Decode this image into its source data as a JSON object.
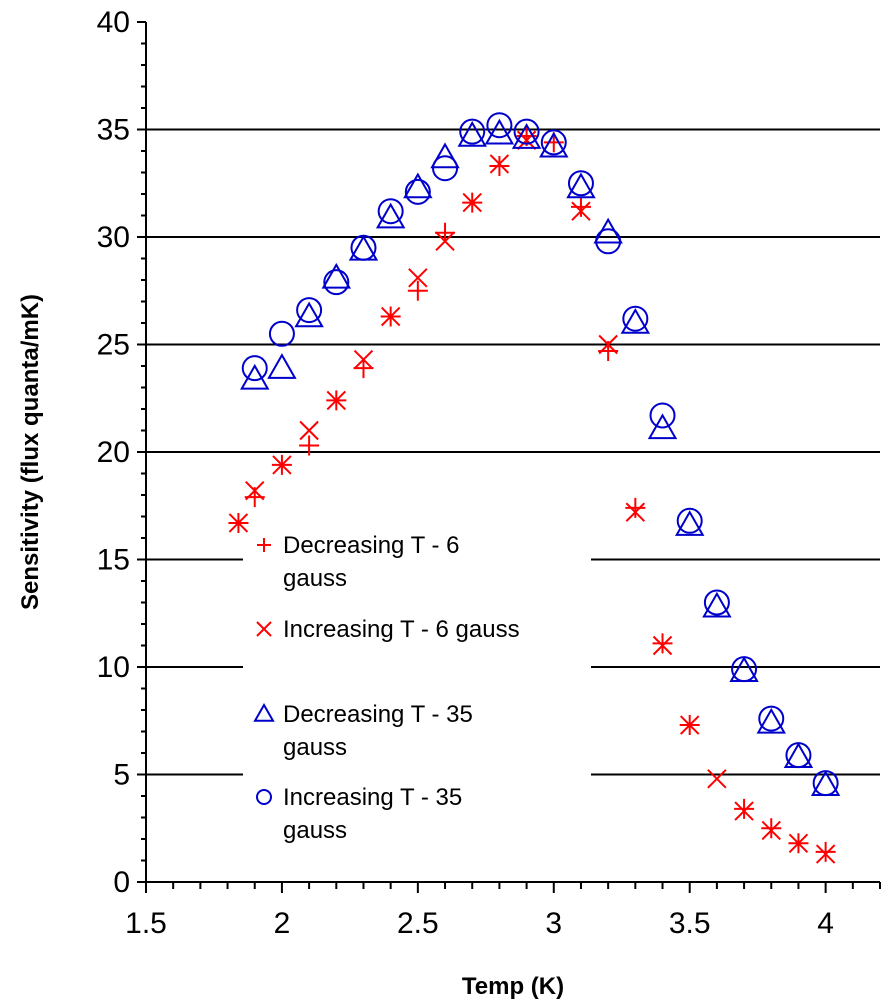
{
  "chart_data": {
    "type": "scatter",
    "xlabel": "Temp (K)",
    "ylabel": "Sensitivity (flux quanta/mK)",
    "xlim": [
      1.5,
      4.2
    ],
    "ylim": [
      0,
      40
    ],
    "x_ticks": [
      1.5,
      2,
      2.5,
      3,
      3.5,
      4
    ],
    "x_tick_labels": [
      "1.5",
      "2",
      "2.5",
      "3",
      "3.5",
      "4"
    ],
    "y_ticks": [
      0,
      5,
      10,
      15,
      20,
      25,
      30,
      35,
      40
    ],
    "y_tick_labels": [
      "0",
      "5",
      "10",
      "15",
      "20",
      "25",
      "30",
      "35",
      "40"
    ],
    "grid": "horizontal major lines",
    "legend_position": "center-left inside plot",
    "series": [
      {
        "name": "Decreasing T - 6 gauss",
        "legend_lines": [
          "Decreasing T - 6",
          "gauss"
        ],
        "marker": "plus",
        "color": "#ff0000",
        "points": [
          [
            1.84,
            16.7
          ],
          [
            1.9,
            17.9
          ],
          [
            2.0,
            19.4
          ],
          [
            2.1,
            20.3
          ],
          [
            2.2,
            22.4
          ],
          [
            2.3,
            23.9
          ],
          [
            2.4,
            26.3
          ],
          [
            2.5,
            27.5
          ],
          [
            2.6,
            30.2
          ],
          [
            2.7,
            31.6
          ],
          [
            2.8,
            33.3
          ],
          [
            2.9,
            34.7
          ],
          [
            3.0,
            34.4
          ],
          [
            3.1,
            31.4
          ],
          [
            3.2,
            24.7
          ],
          [
            3.3,
            17.4
          ],
          [
            3.4,
            11.1
          ],
          [
            3.5,
            7.3
          ],
          [
            3.7,
            3.4
          ],
          [
            3.8,
            2.5
          ],
          [
            3.9,
            1.8
          ],
          [
            4.0,
            1.4
          ]
        ]
      },
      {
        "name": "Increasing T -  6 gauss",
        "legend_lines": [
          "Increasing T -  6 gauss"
        ],
        "marker": "x",
        "color": "#ff0000",
        "points": [
          [
            1.84,
            16.7
          ],
          [
            1.9,
            18.2
          ],
          [
            2.0,
            19.4
          ],
          [
            2.1,
            21.0
          ],
          [
            2.2,
            22.4
          ],
          [
            2.3,
            24.3
          ],
          [
            2.4,
            26.3
          ],
          [
            2.5,
            28.1
          ],
          [
            2.6,
            29.8
          ],
          [
            2.7,
            31.6
          ],
          [
            2.8,
            33.4
          ],
          [
            2.9,
            34.5
          ],
          [
            3.1,
            31.2
          ],
          [
            3.2,
            25.0
          ],
          [
            3.3,
            17.2
          ],
          [
            3.4,
            11.0
          ],
          [
            3.5,
            7.3
          ],
          [
            3.6,
            4.8
          ],
          [
            3.7,
            3.3
          ],
          [
            3.8,
            2.4
          ],
          [
            3.9,
            1.8
          ],
          [
            4.0,
            1.3
          ]
        ]
      },
      {
        "name": "Decreasing T - 35 gauss",
        "legend_lines": [
          "Decreasing T - 35",
          "gauss"
        ],
        "marker": "triangle",
        "color": "#0000cc",
        "points": [
          [
            1.9,
            23.4
          ],
          [
            2.0,
            23.9
          ],
          [
            2.1,
            26.3
          ],
          [
            2.2,
            28.1
          ],
          [
            2.3,
            29.4
          ],
          [
            2.4,
            30.9
          ],
          [
            2.5,
            32.3
          ],
          [
            2.6,
            33.7
          ],
          [
            2.7,
            34.7
          ],
          [
            2.8,
            34.8
          ],
          [
            2.9,
            34.6
          ],
          [
            3.0,
            34.2
          ],
          [
            3.1,
            32.3
          ],
          [
            3.2,
            30.2
          ],
          [
            3.3,
            26.0
          ],
          [
            3.4,
            21.1
          ],
          [
            3.5,
            16.6
          ],
          [
            3.6,
            12.8
          ],
          [
            3.7,
            9.8
          ],
          [
            3.8,
            7.4
          ],
          [
            3.9,
            5.8
          ],
          [
            4.0,
            4.5
          ]
        ]
      },
      {
        "name": "Increasing T - 35 gauss",
        "legend_lines": [
          "Increasing T - 35",
          "gauss"
        ],
        "marker": "circle",
        "color": "#0000cc",
        "points": [
          [
            1.9,
            23.9
          ],
          [
            2.0,
            25.5
          ],
          [
            2.1,
            26.6
          ],
          [
            2.2,
            27.9
          ],
          [
            2.3,
            29.5
          ],
          [
            2.4,
            31.2
          ],
          [
            2.5,
            32.1
          ],
          [
            2.6,
            33.2
          ],
          [
            2.7,
            34.9
          ],
          [
            2.8,
            35.2
          ],
          [
            2.9,
            34.9
          ],
          [
            3.0,
            34.4
          ],
          [
            3.1,
            32.5
          ],
          [
            3.2,
            29.8
          ],
          [
            3.3,
            26.2
          ],
          [
            3.4,
            21.7
          ],
          [
            3.5,
            16.8
          ],
          [
            3.6,
            13.0
          ],
          [
            3.7,
            9.9
          ],
          [
            3.8,
            7.6
          ],
          [
            3.9,
            5.9
          ],
          [
            4.0,
            4.6
          ]
        ]
      }
    ]
  }
}
